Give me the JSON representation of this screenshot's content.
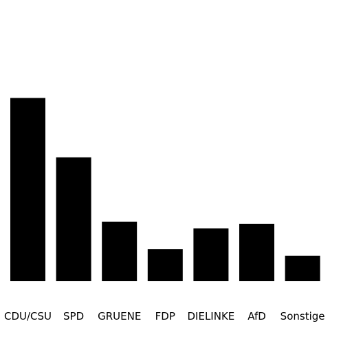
{
  "chart_data": {
    "type": "bar",
    "categories": [
      "CDU/CSU",
      "SPD",
      "GRUENE",
      "FDP",
      "DIELINKE",
      "AfD",
      "Sonstige"
    ],
    "values": [
      33,
      22.3,
      10.7,
      5.8,
      9.5,
      10.3,
      4.6
    ],
    "ylim": [
      0,
      40
    ],
    "title": "",
    "xlabel": "",
    "ylabel": "",
    "grid": false,
    "bar_color": "#000000"
  }
}
